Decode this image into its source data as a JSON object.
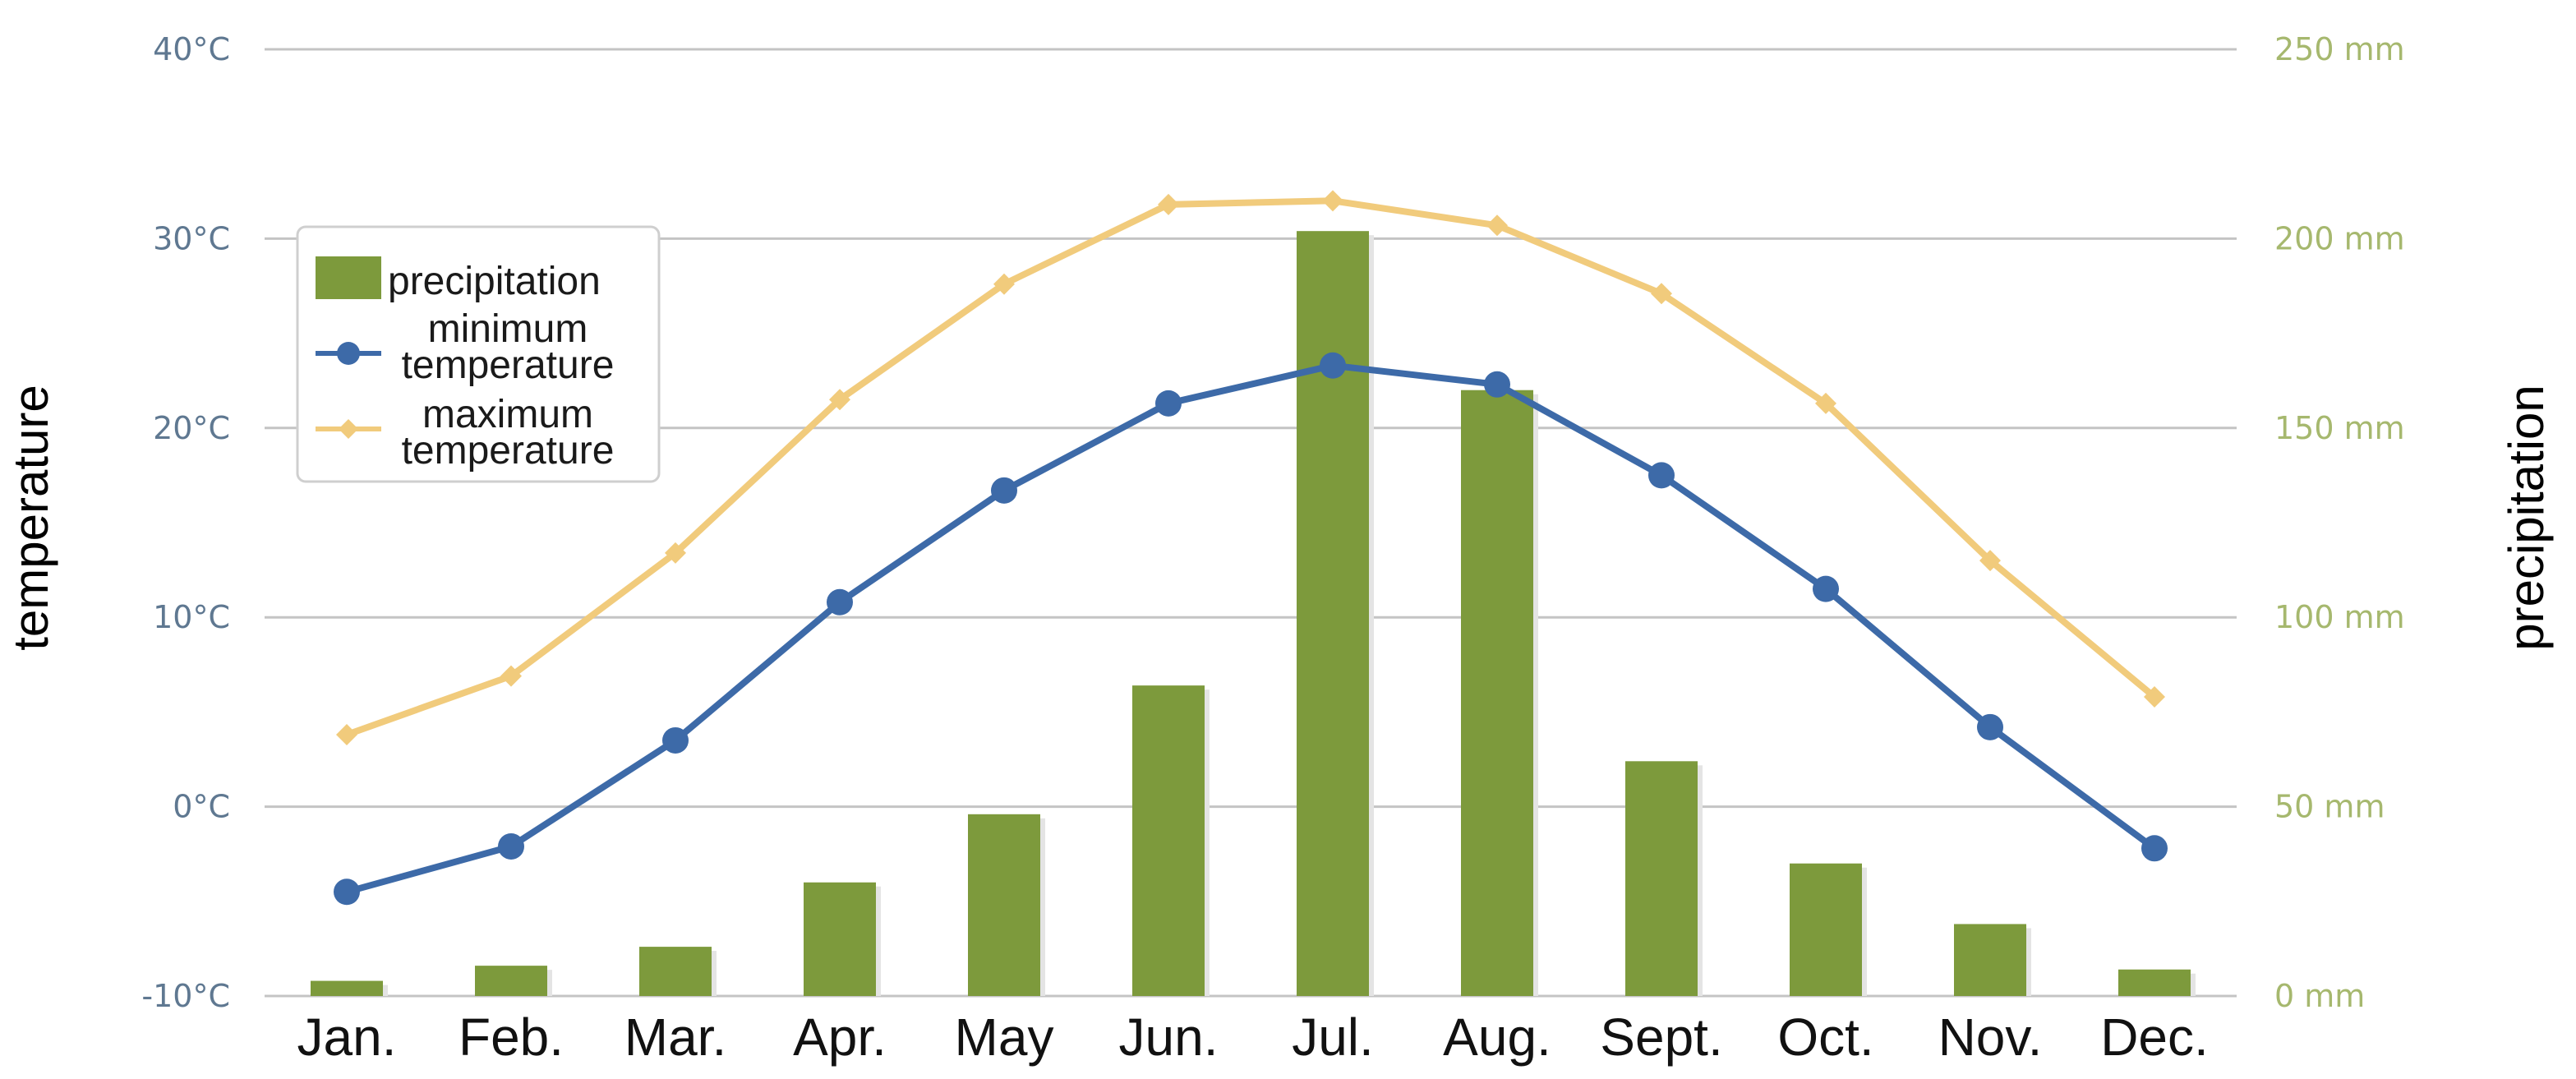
{
  "chart_data": {
    "type": "bar",
    "categories": [
      "Jan.",
      "Feb.",
      "Mar.",
      "Apr.",
      "May",
      "Jun.",
      "Jul.",
      "Aug.",
      "Sept.",
      "Oct.",
      "Nov.",
      "Dec."
    ],
    "series": [
      {
        "name": "precipitation",
        "type": "bar",
        "axis": "right",
        "unit": "mm",
        "color": "#7d9a3c",
        "values": [
          4,
          8,
          13,
          30,
          48,
          82,
          202,
          160,
          62,
          35,
          19,
          7
        ]
      },
      {
        "name": "minimum temperature",
        "type": "line",
        "axis": "left",
        "unit": "°C",
        "color": "#3d6aa8",
        "marker": "circle",
        "values": [
          -4.5,
          -2.1,
          3.5,
          10.8,
          16.7,
          21.3,
          23.3,
          22.3,
          17.5,
          11.5,
          4.2,
          -2.2
        ]
      },
      {
        "name": "maximum temperature",
        "type": "line",
        "axis": "left",
        "unit": "°C",
        "color": "#f1cb7c",
        "marker": "diamond",
        "values": [
          3.8,
          6.9,
          13.4,
          21.5,
          27.6,
          31.8,
          32.0,
          30.7,
          27.1,
          21.3,
          13.0,
          5.8
        ]
      }
    ],
    "left_axis": {
      "title": "temperature",
      "ylim": [
        -10,
        40
      ],
      "ticks": [
        -10,
        0,
        10,
        20,
        30,
        40
      ],
      "tick_labels": [
        "-10°C",
        "0°C",
        "10°C",
        "20°C",
        "30°C",
        "40°C"
      ]
    },
    "right_axis": {
      "title": "precipitation",
      "ylim": [
        0,
        250
      ],
      "ticks": [
        0,
        50,
        100,
        150,
        200,
        250
      ],
      "tick_labels": [
        "0 mm",
        "50 mm",
        "100 mm",
        "150 mm",
        "200 mm",
        "250 mm"
      ]
    },
    "grid": true,
    "legend": {
      "position": "top-left",
      "entries": [
        {
          "label": "precipitation",
          "series": 0
        },
        {
          "label_lines": [
            "minimum",
            "temperature"
          ],
          "series": 1
        },
        {
          "label_lines": [
            "maximum",
            "temperature"
          ],
          "series": 2
        }
      ]
    }
  }
}
